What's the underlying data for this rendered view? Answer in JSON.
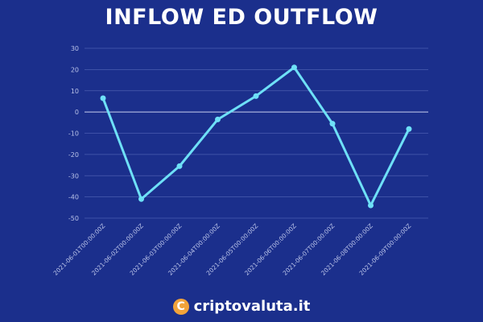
{
  "chart_data": {
    "type": "line",
    "title": "INFLOW ED OUTFLOW",
    "x": [
      "2021-06-01T00:00:00Z",
      "2021-06-02T00:00:00Z",
      "2021-06-03T00:00:00Z",
      "2021-06-04T00:00:00Z",
      "2021-06-05T00:00:00Z",
      "2021-06-06T00:00:00Z",
      "2021-06-07T00:00:00Z",
      "2021-06-08T00:00:00Z",
      "2021-06-09T00:00:00Z"
    ],
    "values": [
      6.5,
      -41,
      -25.5,
      -3.5,
      7.5,
      21,
      -5.5,
      -44,
      -8
    ],
    "yticks": [
      "30",
      "20",
      "10",
      "0",
      "-10",
      "-20",
      "-30",
      "-40",
      "-50"
    ],
    "ylim": [
      -50,
      30
    ],
    "grid": true,
    "line_color": "#6ee0f7",
    "background": "#1b2f8c"
  },
  "brand": {
    "logo_symbol": "C",
    "name": "criptovaluta.it",
    "logo_color": "#f2a33a"
  }
}
